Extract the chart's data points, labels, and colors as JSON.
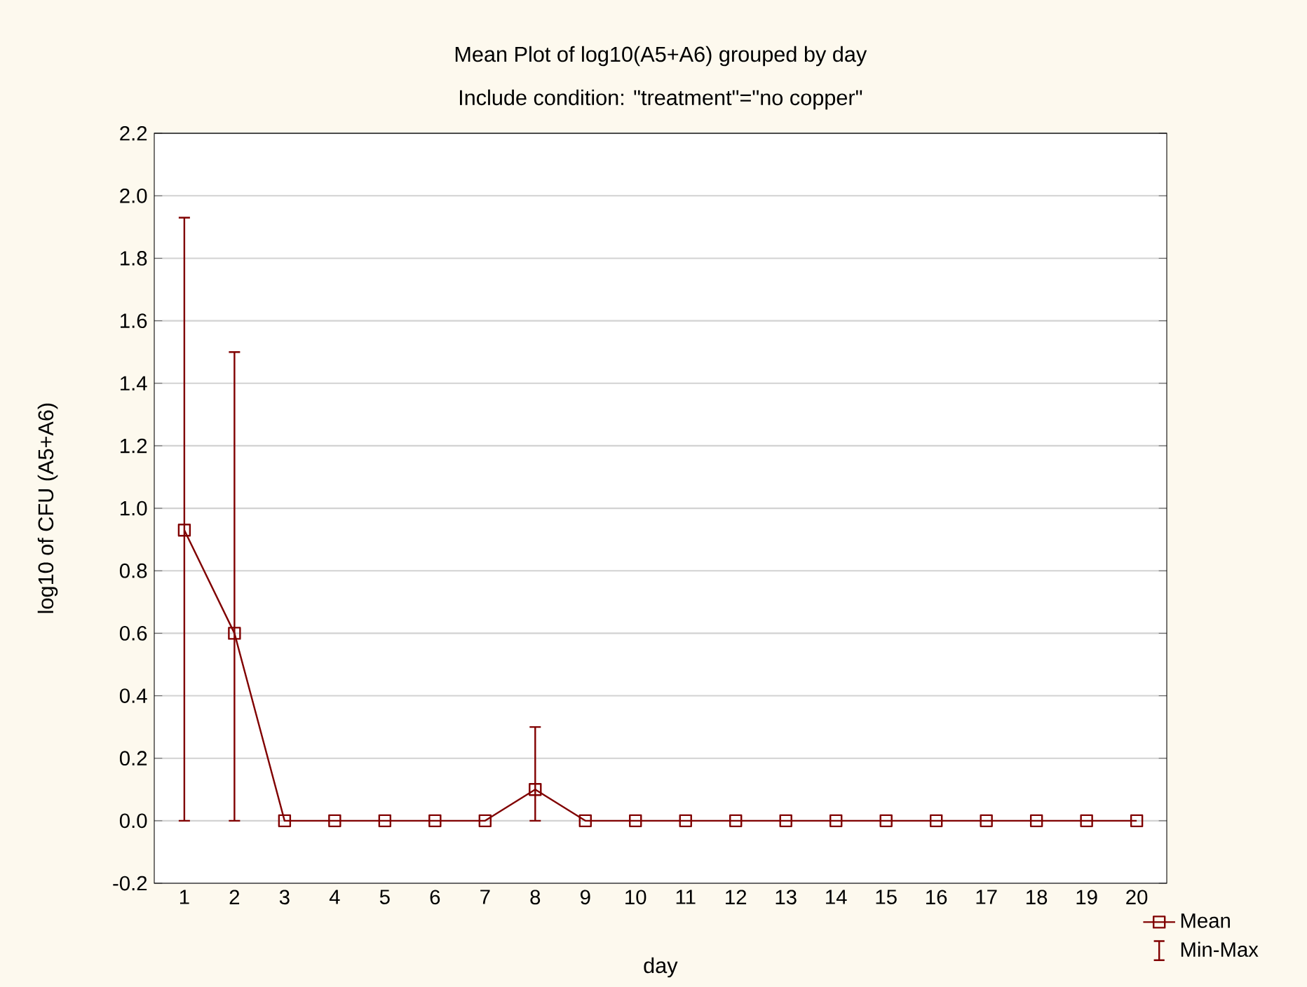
{
  "chart_data": {
    "type": "line",
    "title": "Mean Plot of log10(A5+A6) grouped by  day",
    "subtitle": "Include condition:  \"treatment\"=\"no copper\"",
    "xlabel": "day",
    "ylabel": "log10 of CFU (A5+A6)",
    "categories": [
      "1",
      "2",
      "3",
      "4",
      "5",
      "6",
      "7",
      "8",
      "9",
      "10",
      "11",
      "12",
      "13",
      "14",
      "15",
      "16",
      "17",
      "18",
      "19",
      "20"
    ],
    "series": [
      {
        "name": "Mean",
        "color": "#800000",
        "values": [
          0.93,
          0.6,
          0,
          0,
          0,
          0,
          0,
          0.1,
          0,
          0,
          0,
          0,
          0,
          0,
          0,
          0,
          0,
          0,
          0,
          0
        ],
        "errors": [
          [
            0,
            1.93
          ],
          [
            0,
            1.5
          ],
          null,
          null,
          null,
          null,
          null,
          [
            0,
            0.3
          ],
          null,
          null,
          null,
          null,
          null,
          null,
          null,
          null,
          null,
          null,
          null,
          null
        ]
      }
    ],
    "annotations": [
      "Min-Max"
    ],
    "ylim": [
      -0.2,
      2.2
    ],
    "yticks": [
      {
        "value": -0.2,
        "label": "-0.2"
      },
      {
        "value": 0,
        "label": "0.0"
      },
      {
        "value": 0.2,
        "label": "0.2"
      },
      {
        "value": 0.4,
        "label": "0.4"
      },
      {
        "value": 0.6,
        "label": "0.6"
      },
      {
        "value": 0.8,
        "label": "0.8"
      },
      {
        "value": 1,
        "label": "1.0"
      },
      {
        "value": 1.2,
        "label": "1.2"
      },
      {
        "value": 1.4,
        "label": "1.4"
      },
      {
        "value": 1.6,
        "label": "1.6"
      },
      {
        "value": 1.8,
        "label": "1.8"
      },
      {
        "value": 2,
        "label": "2.0"
      },
      {
        "value": 2.2,
        "label": "2.2"
      }
    ],
    "grid": "y",
    "legend": "bottom right",
    "marker": "square",
    "line_style": "solid"
  }
}
